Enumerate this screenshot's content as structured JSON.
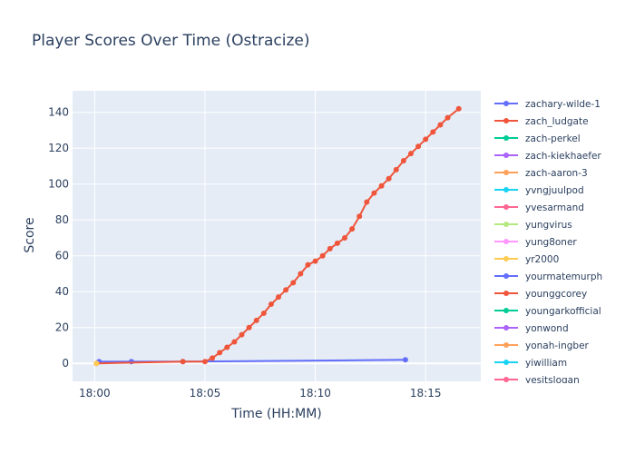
{
  "chart_data": {
    "type": "line",
    "title": "Player Scores Over Time (Ostracize)",
    "xlabel": "Time (HH:MM)",
    "ylabel": "Score",
    "xlim": [
      "17:59:00",
      "18:17:30"
    ],
    "ylim": [
      -10,
      152
    ],
    "x_ticks": [
      "18:00",
      "18:05",
      "18:10",
      "18:15"
    ],
    "y_ticks": [
      0,
      20,
      40,
      60,
      80,
      100,
      120,
      140
    ],
    "grid": true,
    "background": "#e5ecf6",
    "legend_position": "right",
    "legend": [
      {
        "name": "zachary-wilde-1",
        "color": "#636efa"
      },
      {
        "name": "zach_ludgate",
        "color": "#ef553b"
      },
      {
        "name": "zach-perkel",
        "color": "#00cc96"
      },
      {
        "name": "zach-kiekhaefer",
        "color": "#ab63fa"
      },
      {
        "name": "zach-aaron-3",
        "color": "#ffa15a"
      },
      {
        "name": "yvngjuulpod",
        "color": "#19d3f3"
      },
      {
        "name": "yvesarmand",
        "color": "#ff6692"
      },
      {
        "name": "yungvirus",
        "color": "#b6e880"
      },
      {
        "name": "yung8oner",
        "color": "#ff97ff"
      },
      {
        "name": "yr2000",
        "color": "#fecb52"
      },
      {
        "name": "yourmatemurph",
        "color": "#636efa"
      },
      {
        "name": "younggcorey",
        "color": "#ef553b"
      },
      {
        "name": "youngarkofficial",
        "color": "#00cc96"
      },
      {
        "name": "yonwond",
        "color": "#ab63fa"
      },
      {
        "name": "yonah-ingber",
        "color": "#ffa15a"
      },
      {
        "name": "yiwilliam",
        "color": "#19d3f3"
      },
      {
        "name": "yesitslogan",
        "color": "#ff6692"
      }
    ],
    "series": [
      {
        "name": "yourmatemurph",
        "color": "#636efa",
        "x": [
          "18:00:12",
          "18:01:40",
          "18:04:00",
          "18:14:05"
        ],
        "y": [
          1,
          1,
          1,
          2
        ]
      },
      {
        "name": "younggcorey",
        "color": "#ef553b",
        "x": [
          "18:00:05",
          "18:04:00",
          "18:05:00",
          "18:05:20",
          "18:05:40",
          "18:06:00",
          "18:06:20",
          "18:06:40",
          "18:07:00",
          "18:07:20",
          "18:07:40",
          "18:08:00",
          "18:08:20",
          "18:08:40",
          "18:09:00",
          "18:09:20",
          "18:09:40",
          "18:10:00",
          "18:10:20",
          "18:10:40",
          "18:11:00",
          "18:11:20",
          "18:11:40",
          "18:12:00",
          "18:12:20",
          "18:12:40",
          "18:13:00",
          "18:13:20",
          "18:13:40",
          "18:14:00",
          "18:14:20",
          "18:14:40",
          "18:15:00",
          "18:15:20",
          "18:15:40",
          "18:16:00",
          "18:16:30"
        ],
        "y": [
          0,
          1,
          1,
          3,
          6,
          9,
          12,
          16,
          20,
          24,
          28,
          33,
          37,
          41,
          45,
          50,
          55,
          57,
          60,
          64,
          67,
          70,
          75,
          82,
          90,
          95,
          99,
          103,
          108,
          113,
          117,
          121,
          125,
          129,
          133,
          137,
          142
        ]
      },
      {
        "name": "yr2000",
        "color": "#fecb52",
        "x": [
          "18:00:05"
        ],
        "y": [
          0
        ]
      }
    ]
  }
}
